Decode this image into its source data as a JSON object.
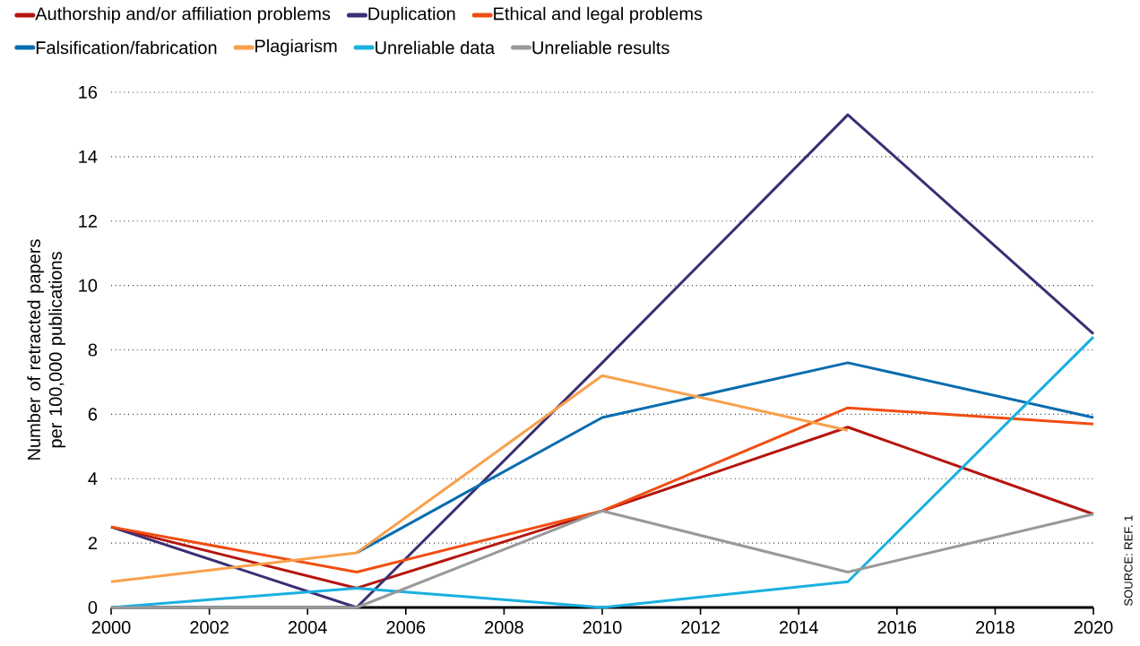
{
  "chart_data": {
    "type": "line",
    "ylabel": "Number of retracted papers per 100,000 publications",
    "x": [
      2000,
      2005,
      2010,
      2015,
      2020
    ],
    "series": [
      {
        "name": "Authorship and/or affiliation problems",
        "color": "#b5150f",
        "values": [
          2.5,
          0.6,
          3.0,
          5.6,
          2.9
        ]
      },
      {
        "name": "Duplication",
        "color": "#3b2f73",
        "values": [
          2.5,
          0,
          7.6,
          15.3,
          8.5
        ]
      },
      {
        "name": "Ethical and legal problems",
        "color": "#f04e12",
        "values": [
          2.5,
          1.1,
          3.0,
          6.2,
          5.7
        ]
      },
      {
        "name": "Falsification/fabrication",
        "color": "#0a6cb0",
        "values": [
          null,
          1.7,
          5.9,
          7.6,
          5.9
        ]
      },
      {
        "name": "Plagiarism",
        "color": "#f9a04b",
        "values": [
          0.8,
          1.7,
          7.2,
          5.5,
          null
        ]
      },
      {
        "name": "Unreliable data",
        "color": "#1ab0e0",
        "values": [
          0,
          0.6,
          0,
          0.8,
          8.4
        ]
      },
      {
        "name": "Unreliable results",
        "color": "#999999",
        "values": [
          0,
          0,
          3.0,
          1.1,
          2.9
        ]
      }
    ],
    "xlim": [
      2000,
      2020
    ],
    "xticks": [
      2000,
      2002,
      2004,
      2006,
      2008,
      2010,
      2012,
      2014,
      2016,
      2018,
      2020
    ],
    "ylim": [
      0,
      16
    ],
    "yticks": [
      0,
      2,
      4,
      6,
      8,
      10,
      12,
      14,
      16
    ],
    "grid": "y",
    "legend": "top",
    "marker": "none",
    "line_style": "solid",
    "annotations": [
      "SOURCE: REF. 1"
    ]
  }
}
